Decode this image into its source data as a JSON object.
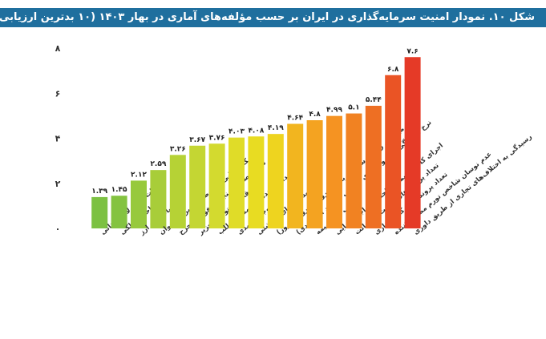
{
  "colors": {
    "title_bg": "#1f6f9e",
    "title_text": "#ffffff",
    "bar_palette": [
      "#7cc142",
      "#8cc63f",
      "#a3cb38",
      "#b8d432",
      "#cfdb2f",
      "#e2df26",
      "#f0d81f",
      "#f4c51d",
      "#f5a623",
      "#f39021",
      "#f07a22",
      "#ec6524",
      "#e94e26",
      "#e53a27",
      "#e12d27"
    ]
  },
  "chart_data": {
    "type": "bar",
    "title": "شکل ۱۰. نمودار امنیت سرمایه‌گذاری در ایران بر حسب مؤلفه‌های آماری در بهار ۱۴۰۳ (۱۰ بدترین ارزیابی)",
    "ylim": [
      0,
      8
    ],
    "yticks": [
      {
        "value": 0,
        "label": "۰"
      },
      {
        "value": 2,
        "label": "۲"
      },
      {
        "value": 4,
        "label": "۴"
      },
      {
        "value": 6,
        "label": "۶"
      },
      {
        "value": 8,
        "label": "۸"
      }
    ],
    "grid": false,
    "categories": [
      [
        "ثبات مسئولان استانی"
      ],
      [
        "مزاحمت ملکی"
      ],
      [
        "ثبات نرخ ارز"
      ],
      [
        "شکایت‌هایی با موضوع تصرف عدوان"
      ],
      [
        "تعداد تصادف منجر به فوت یا جرح"
      ],
      [
        "سرقت مستوجب تعزیر"
      ],
      [
        "تعداد پرونده‌های مطالبه‌طلب"
      ],
      [
        "ضرب‌وجرح عمدی"
      ],
      [
        "درصد چک‌های برگشتی"
      ],
      [
        "میانگین زمان رسیدگی به هر پرونده ورودی (روز)"
      ],
      [
        "نرخ رسیدگی به پرونده‌های قضایی (درصد از ورودی)"
      ],
      [
        "ضریب نفوذ بیمه"
      ],
      [
        "اجرای کامل و بموقع احکام مراجع قضایی"
      ],
      [
        "تعداد پرونده‌های خیانت در امانت"
      ],
      [
        "تعداد پرونده‌های کلاهبرداری"
      ],
      [
        "عدم نوسان شاخص تورم مصرف‌کننده"
      ],
      [
        "رسیدگی به اختلاف‌های تجاری از طریق داوری"
      ]
    ],
    "value_labels": [
      "۱.۳۹",
      "۱.۴۵",
      "۲.۱۲",
      "۲.۵۹",
      "۳.۲۶",
      "۳.۶۷",
      "۳.۷۶",
      "۴.۰۳",
      "۴.۰۸",
      "۴.۱۹",
      "۴.۶۴",
      "۴.۸",
      "۴.۹۹",
      "۵.۱",
      "۵.۴۴",
      "۶.۸",
      "۷.۶"
    ],
    "values": [
      1.39,
      1.45,
      2.12,
      2.59,
      3.26,
      3.67,
      3.76,
      4.03,
      4.08,
      4.19,
      4.64,
      4.8,
      4.99,
      5.1,
      5.44,
      6.8,
      7.6
    ],
    "bar_colors": [
      "#7cc142",
      "#84c340",
      "#97c93c",
      "#a8cd39",
      "#b6d235",
      "#c4d633",
      "#d3da2f",
      "#e0dc28",
      "#e8dc22",
      "#eed41f",
      "#f2b51f",
      "#f4a321",
      "#f59322",
      "#f18222",
      "#ee6f23",
      "#ea5425",
      "#e53a27"
    ]
  }
}
